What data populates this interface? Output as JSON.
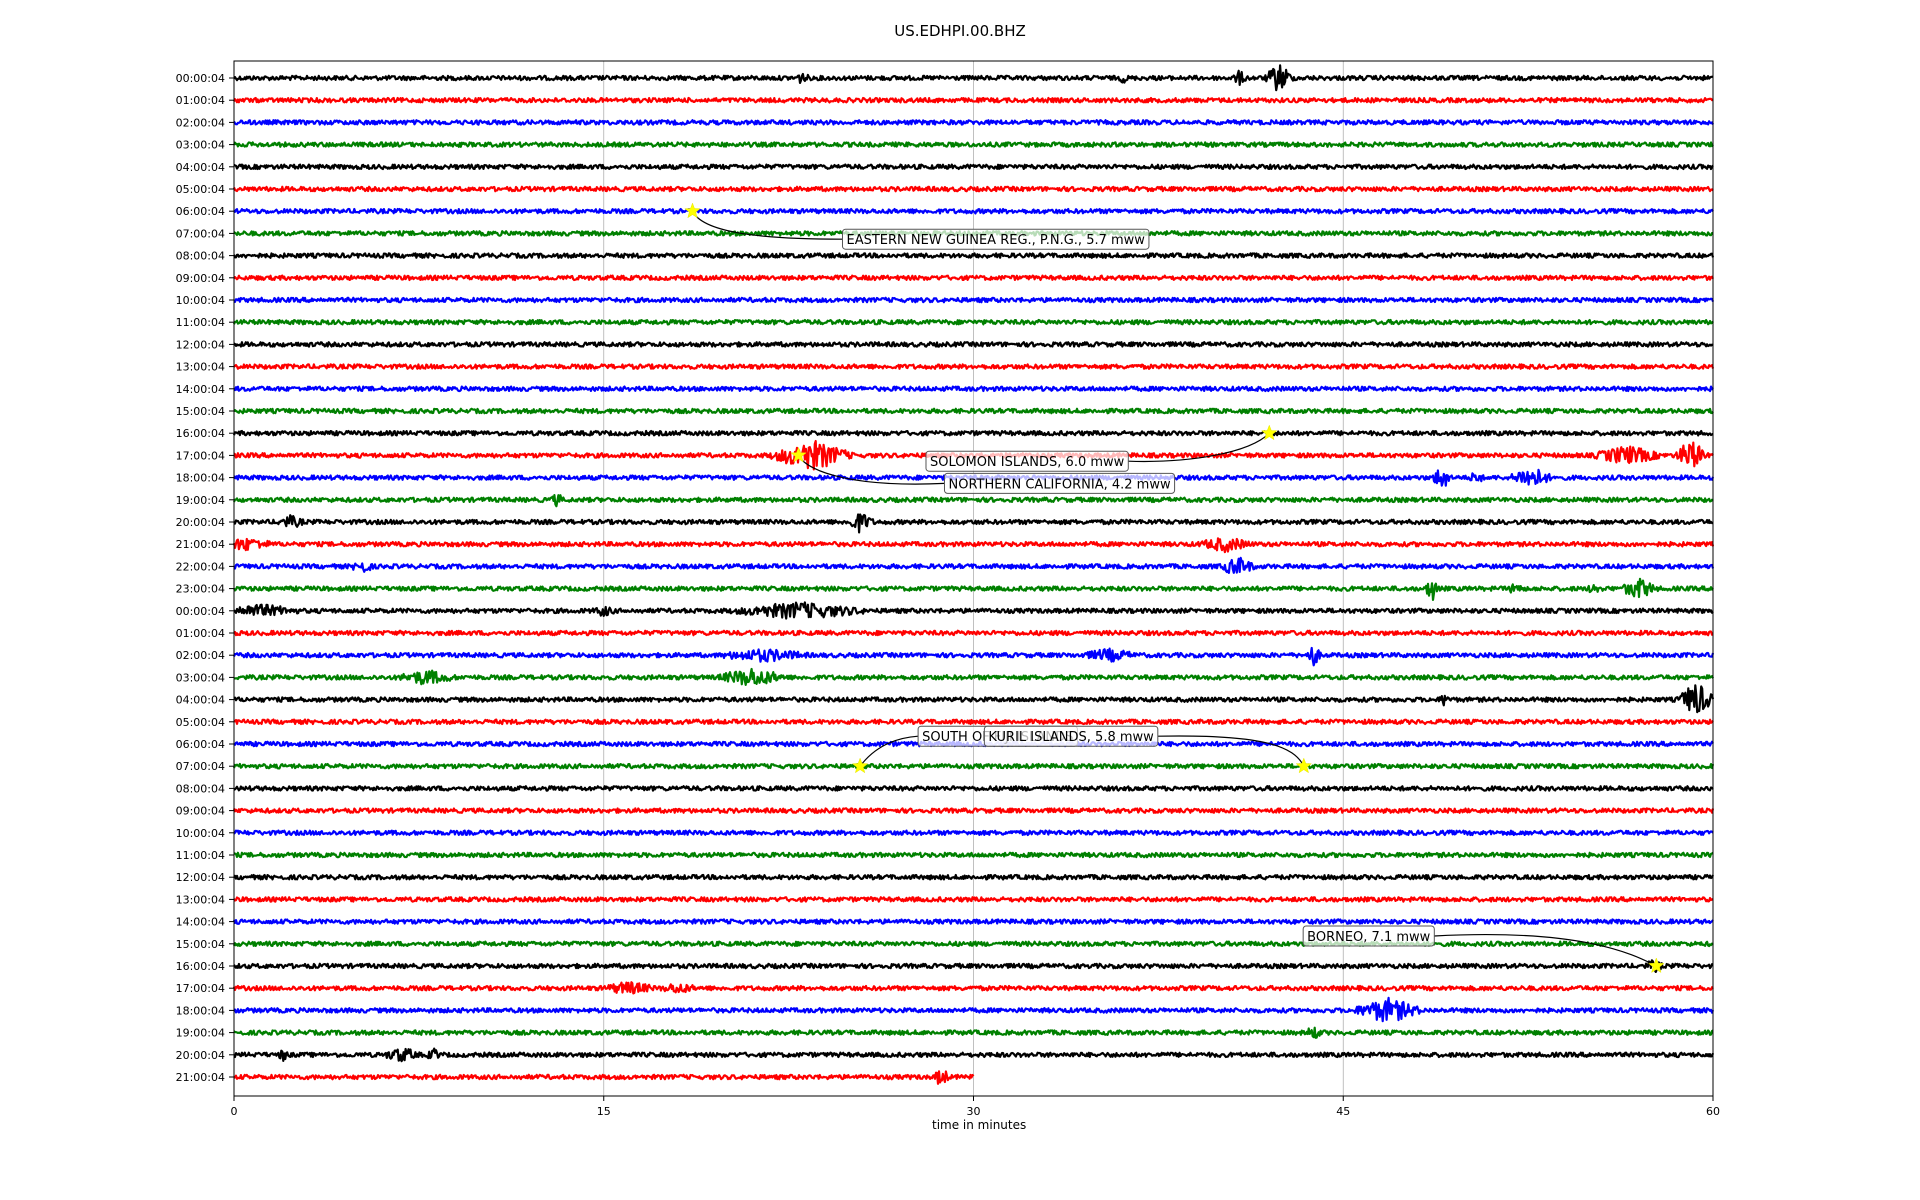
{
  "chart_data": {
    "type": "line",
    "title": "US.EDHPI.00.BHZ",
    "xlabel": "time in minutes",
    "ylabel": "",
    "xlim": [
      0,
      60
    ],
    "x_ticks": [
      "0",
      "15",
      "30",
      "45",
      "60"
    ],
    "grid": "vertical lines at x ticks",
    "row_labels": [
      "00:00:04",
      "01:00:04",
      "02:00:04",
      "03:00:04",
      "04:00:04",
      "05:00:04",
      "06:00:04",
      "07:00:04",
      "08:00:04",
      "09:00:04",
      "10:00:04",
      "11:00:04",
      "12:00:04",
      "13:00:04",
      "14:00:04",
      "15:00:04",
      "16:00:04",
      "17:00:04",
      "18:00:04",
      "19:00:04",
      "20:00:04",
      "21:00:04",
      "22:00:04",
      "23:00:04",
      "00:00:04",
      "01:00:04",
      "02:00:04",
      "03:00:04",
      "04:00:04",
      "05:00:04",
      "06:00:04",
      "07:00:04",
      "08:00:04",
      "09:00:04",
      "10:00:04",
      "11:00:04",
      "12:00:04",
      "13:00:04",
      "14:00:04",
      "15:00:04",
      "16:00:04",
      "17:00:04",
      "18:00:04",
      "19:00:04",
      "20:00:04",
      "21:00:04"
    ],
    "trace_colors": [
      "#000000",
      "#ff0000",
      "#0000ff",
      "#008000"
    ],
    "last_trace_end_minute": 30,
    "bursts": [
      {
        "row": 0,
        "x": 42.4,
        "amp": 14,
        "dur": 0.6
      },
      {
        "row": 0,
        "x": 40.8,
        "amp": 6,
        "dur": 0.3
      },
      {
        "row": 0,
        "x": 23.0,
        "amp": 4,
        "dur": 0.4
      },
      {
        "row": 0,
        "x": 36.1,
        "amp": 4,
        "dur": 0.2
      },
      {
        "row": 17,
        "x": 23.4,
        "amp": 14,
        "dur": 1.8
      },
      {
        "row": 17,
        "x": 59.1,
        "amp": 14,
        "dur": 0.7
      },
      {
        "row": 17,
        "x": 56.5,
        "amp": 8,
        "dur": 1.5
      },
      {
        "row": 18,
        "x": 49.0,
        "amp": 12,
        "dur": 0.4
      },
      {
        "row": 18,
        "x": 52.6,
        "amp": 10,
        "dur": 0.9
      },
      {
        "row": 18,
        "x": 50.4,
        "amp": 6,
        "dur": 0.3
      },
      {
        "row": 19,
        "x": 13.1,
        "amp": 5,
        "dur": 0.3
      },
      {
        "row": 20,
        "x": 25.4,
        "amp": 9,
        "dur": 0.6
      },
      {
        "row": 20,
        "x": 2.3,
        "amp": 5,
        "dur": 0.6
      },
      {
        "row": 21,
        "x": 40.2,
        "amp": 6,
        "dur": 1.2
      },
      {
        "row": 21,
        "x": 0.5,
        "amp": 5,
        "dur": 1.2
      },
      {
        "row": 22,
        "x": 40.7,
        "amp": 8,
        "dur": 0.8
      },
      {
        "row": 22,
        "x": 5.2,
        "amp": 5,
        "dur": 0.5
      },
      {
        "row": 23,
        "x": 48.6,
        "amp": 12,
        "dur": 0.3
      },
      {
        "row": 23,
        "x": 57.0,
        "amp": 9,
        "dur": 0.8
      },
      {
        "row": 23,
        "x": 52.0,
        "amp": 6,
        "dur": 0.3
      },
      {
        "row": 23,
        "x": 55.2,
        "amp": 5,
        "dur": 0.3
      },
      {
        "row": 24,
        "x": 22.9,
        "amp": 7,
        "dur": 3.0
      },
      {
        "row": 24,
        "x": 1.0,
        "amp": 5,
        "dur": 1.8
      },
      {
        "row": 24,
        "x": 15.0,
        "amp": 4,
        "dur": 0.5
      },
      {
        "row": 26,
        "x": 21.5,
        "amp": 5,
        "dur": 2.0
      },
      {
        "row": 26,
        "x": 35.5,
        "amp": 5,
        "dur": 1.2
      },
      {
        "row": 26,
        "x": 43.8,
        "amp": 10,
        "dur": 0.3
      },
      {
        "row": 27,
        "x": 21.0,
        "amp": 8,
        "dur": 1.5
      },
      {
        "row": 27,
        "x": 7.8,
        "amp": 6,
        "dur": 1.3
      },
      {
        "row": 28,
        "x": 59.3,
        "amp": 16,
        "dur": 0.8
      },
      {
        "row": 28,
        "x": 49.1,
        "amp": 6,
        "dur": 0.2
      },
      {
        "row": 40,
        "x": 57.6,
        "amp": 5,
        "dur": 0.4
      },
      {
        "row": 41,
        "x": 16.0,
        "amp": 5,
        "dur": 1.2
      },
      {
        "row": 41,
        "x": 18.0,
        "amp": 4,
        "dur": 0.8
      },
      {
        "row": 42,
        "x": 46.8,
        "amp": 11,
        "dur": 1.5
      },
      {
        "row": 43,
        "x": 43.8,
        "amp": 5,
        "dur": 0.4
      },
      {
        "row": 44,
        "x": 6.8,
        "amp": 6,
        "dur": 0.8
      },
      {
        "row": 44,
        "x": 8.1,
        "amp": 5,
        "dur": 0.3
      },
      {
        "row": 44,
        "x": 2.0,
        "amp": 6,
        "dur": 0.2
      },
      {
        "row": 45,
        "x": 28.7,
        "amp": 10,
        "dur": 0.3
      }
    ],
    "events": [
      {
        "label": "EASTERN NEW GUINEA REG., P.N.G., 5.7 mww",
        "row": 6,
        "x": 18.6
      },
      {
        "label": "NORTHERN CALIFORNIA, 4.2 mww",
        "row": 17,
        "x": 22.9
      },
      {
        "label": "SOLOMON ISLANDS, 6.0 mww",
        "row": 16,
        "x": 42.0
      },
      {
        "label": "SOUTH OF FIJI ISLANDS",
        "row": 31,
        "x": 25.4
      },
      {
        "label": "KURIL ISLANDS, 5.8 mww",
        "row": 31,
        "x": 43.4
      },
      {
        "label": "BORNEO, 7.1 mww",
        "row": 40,
        "x": 57.7
      }
    ]
  }
}
